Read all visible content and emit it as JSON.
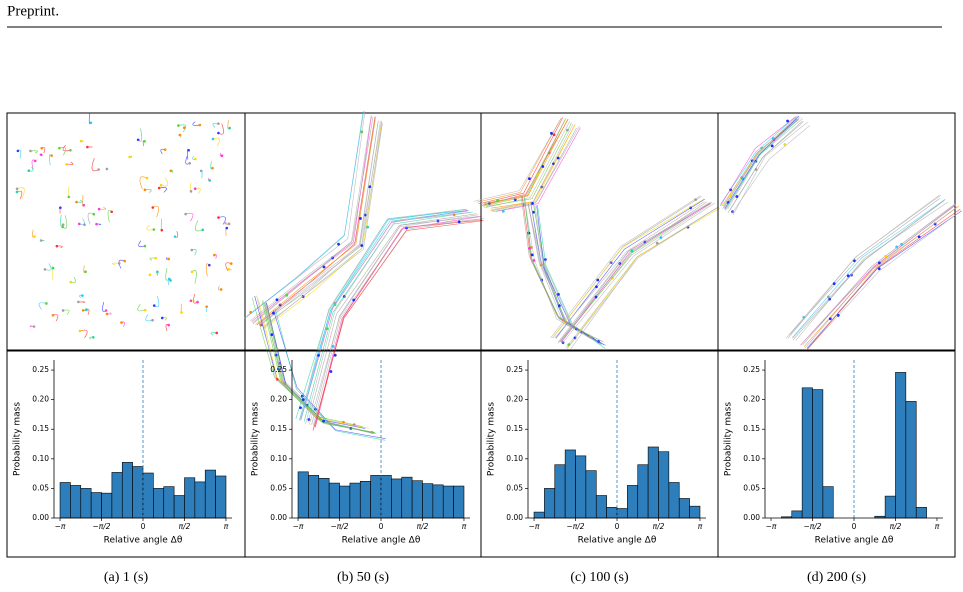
{
  "header": {
    "title": "Preprint."
  },
  "chart_data": [
    {
      "type": "histogram",
      "caption": "(a) 1 (s)",
      "xlabel": "Relative angle Δθ",
      "ylabel": "Probability mass",
      "color": "#2e7ebc",
      "bins": [
        -3.1416,
        -2.7489,
        -2.3562,
        -1.9635,
        -1.5708,
        -1.1781,
        -0.7854,
        -0.3927,
        0,
        0.3927,
        0.7854,
        1.1781,
        1.5708,
        1.9635,
        2.3562,
        2.7489,
        3.1416
      ],
      "values": [
        0.06,
        0.055,
        0.05,
        0.043,
        0.042,
        0.077,
        0.094,
        0.087,
        0.076,
        0.05,
        0.053,
        0.038,
        0.068,
        0.061,
        0.081,
        0.071
      ],
      "xlim": [
        -3.37,
        3.37
      ],
      "ylim": [
        0,
        0.267
      ],
      "vline": 0,
      "xticks": [
        {
          "value": -3.1416,
          "label": "−π"
        },
        {
          "value": -1.5708,
          "label": "−π/2"
        },
        0,
        {
          "value": 1.5708,
          "label": "π/2"
        },
        {
          "value": 3.1416,
          "label": "π"
        }
      ],
      "yticks": [
        {
          "value": 0,
          "label": "0.00"
        },
        {
          "value": 0.05,
          "label": "0.05"
        },
        {
          "value": 0.1,
          "label": "0.10"
        },
        {
          "value": 0.15,
          "label": "0.15"
        },
        {
          "value": 0.2,
          "label": "0.20"
        },
        {
          "value": 0.25,
          "label": "0.25"
        }
      ]
    },
    {
      "type": "histogram",
      "caption": "(b) 50 (s)",
      "xlabel": "Relative angle Δθ",
      "ylabel": "Probability mass",
      "color": "#2e7ebc",
      "bins": [
        -3.1416,
        -2.7489,
        -2.3562,
        -1.9635,
        -1.5708,
        -1.1781,
        -0.7854,
        -0.3927,
        0,
        0.3927,
        0.7854,
        1.1781,
        1.5708,
        1.9635,
        2.3562,
        2.7489,
        3.1416
      ],
      "values": [
        0.078,
        0.072,
        0.067,
        0.059,
        0.054,
        0.059,
        0.062,
        0.072,
        0.072,
        0.066,
        0.069,
        0.063,
        0.058,
        0.056,
        0.054,
        0.054
      ],
      "xlim": [
        -3.37,
        3.37
      ],
      "ylim": [
        0,
        0.267
      ],
      "vline": 0,
      "xticks": [
        {
          "value": -3.1416,
          "label": "−π"
        },
        {
          "value": -1.5708,
          "label": "−π/2"
        },
        0,
        {
          "value": 1.5708,
          "label": "π/2"
        },
        {
          "value": 3.1416,
          "label": "π"
        }
      ],
      "yticks": [
        {
          "value": 0,
          "label": "0.00"
        },
        {
          "value": 0.05,
          "label": "0.05"
        },
        {
          "value": 0.1,
          "label": "0.10"
        },
        {
          "value": 0.15,
          "label": "0.15"
        },
        {
          "value": 0.2,
          "label": "0.20"
        },
        {
          "value": 0.25,
          "label": "0.25"
        }
      ]
    },
    {
      "type": "histogram",
      "caption": "(c) 100 (s)",
      "xlabel": "Relative angle Δθ",
      "ylabel": "Probability mass",
      "color": "#2e7ebc",
      "bins": [
        -3.1416,
        -2.7489,
        -2.3562,
        -1.9635,
        -1.5708,
        -1.1781,
        -0.7854,
        -0.3927,
        0,
        0.3927,
        0.7854,
        1.1781,
        1.5708,
        1.9635,
        2.3562,
        2.7489,
        3.1416
      ],
      "values": [
        0.01,
        0.05,
        0.09,
        0.115,
        0.105,
        0.08,
        0.038,
        0.018,
        0.016,
        0.055,
        0.09,
        0.12,
        0.112,
        0.06,
        0.033,
        0.02
      ],
      "xlim": [
        -3.37,
        3.37
      ],
      "ylim": [
        0,
        0.267
      ],
      "vline": 0,
      "xticks": [
        {
          "value": -3.1416,
          "label": "−π"
        },
        {
          "value": -1.5708,
          "label": "−π/2"
        },
        0,
        {
          "value": 1.5708,
          "label": "π/2"
        },
        {
          "value": 3.1416,
          "label": "π"
        }
      ],
      "yticks": [
        {
          "value": 0,
          "label": "0.00"
        },
        {
          "value": 0.05,
          "label": "0.05"
        },
        {
          "value": 0.1,
          "label": "0.10"
        },
        {
          "value": 0.15,
          "label": "0.15"
        },
        {
          "value": 0.2,
          "label": "0.20"
        },
        {
          "value": 0.25,
          "label": "0.25"
        }
      ]
    },
    {
      "type": "histogram",
      "caption": "(d) 200 (s)",
      "xlabel": "Relative angle Δθ",
      "ylabel": "Probability mass",
      "color": "#2e7ebc",
      "bins": [
        -3.1416,
        -2.7489,
        -2.3562,
        -1.9635,
        -1.5708,
        -1.1781,
        -0.7854,
        -0.3927,
        0,
        0.3927,
        0.7854,
        1.1781,
        1.5708,
        1.9635,
        2.3562,
        2.7489,
        3.1416
      ],
      "values": [
        0,
        0.002,
        0.012,
        0.22,
        0.217,
        0.053,
        0,
        0,
        0,
        0,
        0.003,
        0.037,
        0.246,
        0.197,
        0.018,
        0
      ],
      "xlim": [
        -3.37,
        3.37
      ],
      "ylim": [
        0,
        0.267
      ],
      "vline": 0,
      "xticks": [
        {
          "value": -3.1416,
          "label": "−π"
        },
        {
          "value": -1.5708,
          "label": "−π/2"
        },
        0,
        {
          "value": 1.5708,
          "label": "π/2"
        },
        {
          "value": 3.1416,
          "label": "π"
        }
      ],
      "yticks": [
        {
          "value": 0,
          "label": "0.00"
        },
        {
          "value": 0.05,
          "label": "0.05"
        },
        {
          "value": 0.1,
          "label": "0.10"
        },
        {
          "value": 0.15,
          "label": "0.15"
        },
        {
          "value": 0.2,
          "label": "0.20"
        },
        {
          "value": 0.25,
          "label": "0.25"
        }
      ]
    }
  ]
}
